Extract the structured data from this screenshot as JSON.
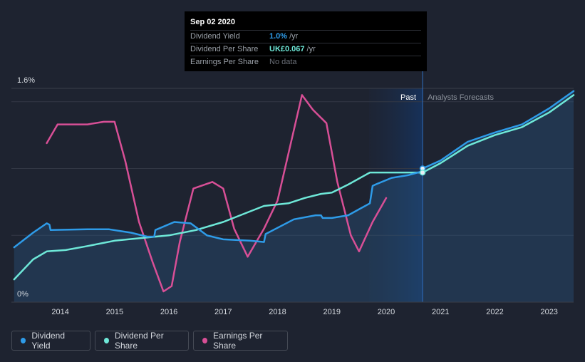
{
  "tooltip": {
    "date": "Sep 02 2020",
    "rows": [
      {
        "label": "Dividend Yield",
        "value": "1.0%",
        "unit": "/yr",
        "color": "#2e9be8"
      },
      {
        "label": "Dividend Per Share",
        "value": "UK£0.067",
        "unit": "/yr",
        "color": "#6ee8d8"
      },
      {
        "label": "Earnings Per Share",
        "value": "No data",
        "unit": "",
        "color": "#6b7079"
      }
    ]
  },
  "regions": {
    "past_label": "Past",
    "forecast_label": "Analysts Forecasts"
  },
  "legend": [
    {
      "label": "Dividend Yield",
      "color": "#2e9be8"
    },
    {
      "label": "Dividend Per Share",
      "color": "#6ee8d8"
    },
    {
      "label": "Earnings Per Share",
      "color": "#d84f96"
    }
  ],
  "chart_data": {
    "type": "line",
    "y_top_label": "1.6%",
    "y_bottom_label": "0%",
    "ylim": [
      0,
      1.6
    ],
    "xlim": [
      2013.1,
      2023.45
    ],
    "x_ticks": [
      "2014",
      "2015",
      "2016",
      "2017",
      "2018",
      "2019",
      "2020",
      "2021",
      "2022",
      "2023"
    ],
    "x_tick_values": [
      2014,
      2015,
      2016,
      2017,
      2018,
      2019,
      2020,
      2021,
      2022,
      2023
    ],
    "past_boundary": 2020.67,
    "gridlines": [
      0.5,
      1.0,
      1.5
    ],
    "series": [
      {
        "name": "Dividend Yield",
        "color": "#2e9be8",
        "points": [
          [
            2013.15,
            0.41
          ],
          [
            2013.5,
            0.52
          ],
          [
            2013.75,
            0.59
          ],
          [
            2013.8,
            0.58
          ],
          [
            2013.82,
            0.54
          ],
          [
            2014.5,
            0.545
          ],
          [
            2014.9,
            0.545
          ],
          [
            2015.3,
            0.52
          ],
          [
            2015.6,
            0.49
          ],
          [
            2015.73,
            0.49
          ],
          [
            2015.75,
            0.54
          ],
          [
            2016.1,
            0.6
          ],
          [
            2016.4,
            0.59
          ],
          [
            2016.7,
            0.5
          ],
          [
            2017.0,
            0.47
          ],
          [
            2017.5,
            0.46
          ],
          [
            2017.75,
            0.45
          ],
          [
            2017.78,
            0.51
          ],
          [
            2018.3,
            0.62
          ],
          [
            2018.7,
            0.65
          ],
          [
            2018.8,
            0.65
          ],
          [
            2018.83,
            0.63
          ],
          [
            2019.0,
            0.63
          ],
          [
            2019.3,
            0.65
          ],
          [
            2019.7,
            0.74
          ],
          [
            2019.75,
            0.87
          ],
          [
            2019.8,
            0.88
          ],
          [
            2020.1,
            0.93
          ],
          [
            2020.4,
            0.95
          ],
          [
            2020.67,
            0.98
          ],
          [
            2020.67,
            1.0
          ],
          [
            2021.0,
            1.06
          ],
          [
            2021.5,
            1.2
          ],
          [
            2022.0,
            1.27
          ],
          [
            2022.5,
            1.33
          ],
          [
            2023.0,
            1.45
          ],
          [
            2023.45,
            1.58
          ]
        ]
      },
      {
        "name": "Dividend Per Share",
        "color": "#6ee8d8",
        "points": [
          [
            2013.15,
            0.17
          ],
          [
            2013.5,
            0.32
          ],
          [
            2013.75,
            0.38
          ],
          [
            2014.1,
            0.39
          ],
          [
            2014.5,
            0.42
          ],
          [
            2015.0,
            0.46
          ],
          [
            2015.5,
            0.48
          ],
          [
            2016.0,
            0.5
          ],
          [
            2016.5,
            0.54
          ],
          [
            2017.0,
            0.6
          ],
          [
            2017.5,
            0.68
          ],
          [
            2017.75,
            0.72
          ],
          [
            2018.2,
            0.74
          ],
          [
            2018.5,
            0.78
          ],
          [
            2018.8,
            0.81
          ],
          [
            2019.0,
            0.82
          ],
          [
            2019.3,
            0.88
          ],
          [
            2019.7,
            0.97
          ],
          [
            2020.0,
            0.97
          ],
          [
            2020.67,
            0.97
          ],
          [
            2021.0,
            1.04
          ],
          [
            2021.5,
            1.17
          ],
          [
            2022.0,
            1.25
          ],
          [
            2022.5,
            1.31
          ],
          [
            2023.0,
            1.42
          ],
          [
            2023.45,
            1.55
          ]
        ]
      },
      {
        "name": "Earnings Per Share",
        "color": "#d84f96",
        "points": [
          [
            2013.75,
            1.19
          ],
          [
            2013.95,
            1.33
          ],
          [
            2014.5,
            1.33
          ],
          [
            2014.8,
            1.35
          ],
          [
            2015.0,
            1.35
          ],
          [
            2015.2,
            1.05
          ],
          [
            2015.45,
            0.6
          ],
          [
            2015.7,
            0.3
          ],
          [
            2015.9,
            0.08
          ],
          [
            2016.05,
            0.12
          ],
          [
            2016.2,
            0.45
          ],
          [
            2016.45,
            0.85
          ],
          [
            2016.8,
            0.9
          ],
          [
            2017.0,
            0.85
          ],
          [
            2017.2,
            0.55
          ],
          [
            2017.45,
            0.34
          ],
          [
            2017.75,
            0.55
          ],
          [
            2018.0,
            0.76
          ],
          [
            2018.25,
            1.2
          ],
          [
            2018.45,
            1.55
          ],
          [
            2018.65,
            1.44
          ],
          [
            2018.9,
            1.34
          ],
          [
            2019.1,
            0.9
          ],
          [
            2019.35,
            0.5
          ],
          [
            2019.5,
            0.38
          ],
          [
            2019.75,
            0.6
          ],
          [
            2020.0,
            0.78
          ]
        ]
      }
    ],
    "highlights": [
      {
        "x": 2020.67,
        "y": 1.0,
        "color": "#2e9be8"
      },
      {
        "x": 2020.67,
        "y": 0.97,
        "color": "#6ee8d8"
      }
    ]
  }
}
